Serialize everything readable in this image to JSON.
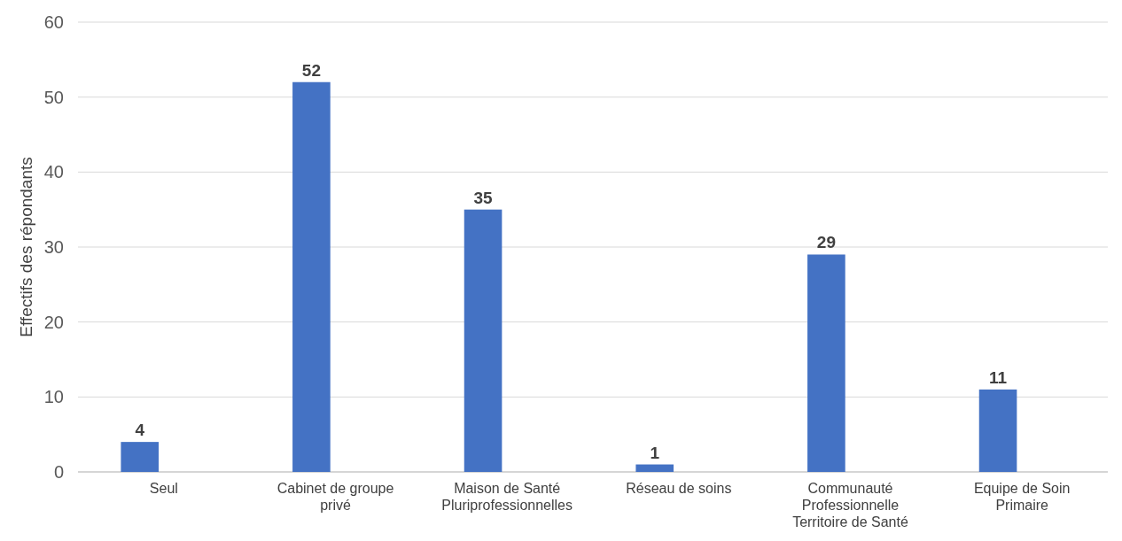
{
  "chart_data": {
    "type": "bar",
    "ylabel": "Effectifs des répondants",
    "categories": [
      "Seul",
      "Cabinet de groupe privé",
      "Maison de Santé Pluriprofessionnelles",
      "Réseau de soins",
      "Communauté Professionnelle Territoire de Santé",
      "Equipe de Soin Primaire"
    ],
    "values": [
      4,
      52,
      35,
      1,
      29,
      11
    ],
    "color": "#4472c4",
    "ylim": [
      0,
      60
    ],
    "yticks": [
      0,
      10,
      20,
      30,
      40,
      50,
      60
    ],
    "grid": "y",
    "data_labels": true
  }
}
